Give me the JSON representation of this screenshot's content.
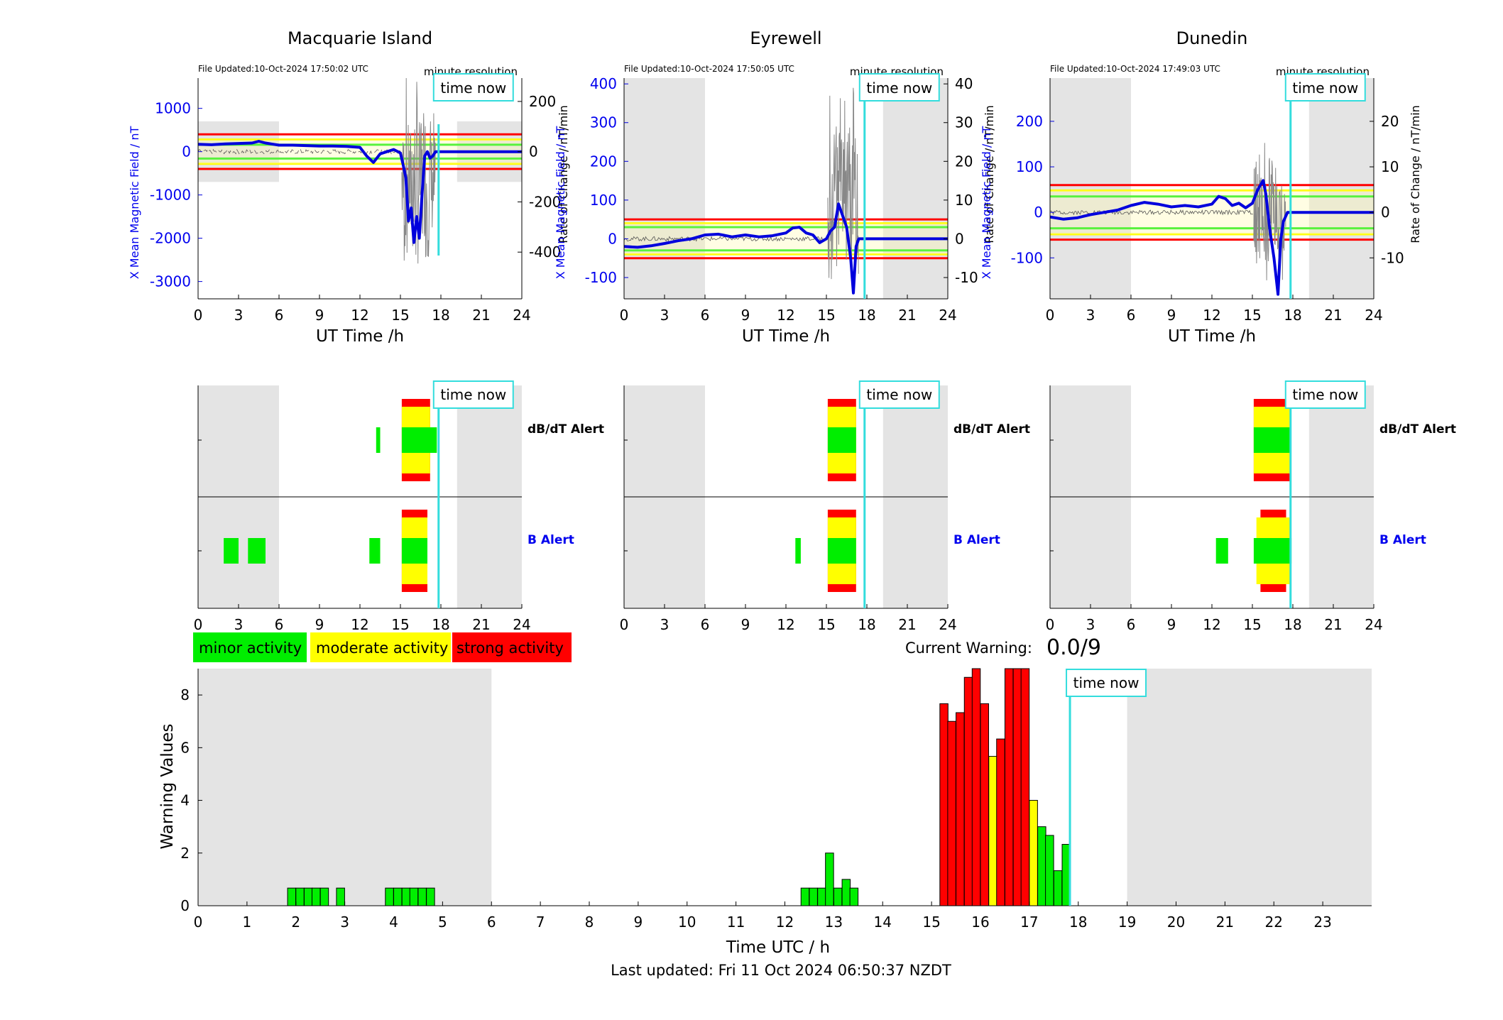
{
  "stations": [
    {
      "name": "Macquarie Island",
      "file_updated": "File Updated:10-Oct-2024 17:50:02 UTC",
      "resolution": "minute resolution",
      "time_now_label": "time now",
      "time_now_hour": 17.83,
      "night_bands": [
        [
          0,
          6
        ],
        [
          19.2,
          24
        ]
      ],
      "left_ylabel": "X Mean Magnetic Field / nT",
      "right_ylabel": "Rate of Change / nT/min",
      "left_ticks": [
        1000,
        0,
        -1000,
        -2000,
        -3000
      ],
      "left_range": [
        -3400,
        1700
      ],
      "right_ticks": [
        200,
        0,
        -200,
        -400
      ],
      "right_range": [
        -586,
        293
      ],
      "night_fill_range": [
        -700,
        700
      ],
      "thresholds": {
        "red": [
          400,
          -400
        ],
        "yellow": [
          280,
          -280
        ],
        "green": [
          160,
          -160
        ]
      },
      "mean_field": {
        "x": [
          0,
          1,
          2,
          3,
          4,
          4.5,
          5,
          6,
          7,
          8,
          9,
          10,
          11,
          12,
          12.5,
          13,
          13.5,
          14,
          14.5,
          15,
          15.2,
          15.4,
          15.6,
          15.8,
          16,
          16.2,
          16.4,
          16.6,
          16.8,
          17,
          17.2,
          17.4,
          17.6,
          17.8,
          18,
          20,
          24
        ],
        "y": [
          170,
          160,
          180,
          190,
          200,
          240,
          200,
          150,
          150,
          140,
          130,
          130,
          120,
          100,
          -100,
          -250,
          -50,
          0,
          50,
          -30,
          -300,
          -600,
          -1600,
          -1300,
          -2100,
          -1500,
          -2000,
          -1000,
          -100,
          0,
          -150,
          -100,
          0,
          0,
          0,
          0,
          0
        ]
      },
      "rate_of_change_span": [
        15.1,
        17.6,
        2000,
        -3400
      ],
      "alerts": {
        "dbdt": [
          {
            "from": 13.2,
            "to": 13.5,
            "level": "minor"
          },
          {
            "from": 15.1,
            "to": 17.2,
            "level": "strong"
          },
          {
            "from": 15.1,
            "to": 17.2,
            "level": "moderate"
          },
          {
            "from": 15.1,
            "to": 17.7,
            "level": "minor"
          }
        ],
        "b": [
          {
            "from": 1.9,
            "to": 3.0,
            "level": "minor"
          },
          {
            "from": 3.7,
            "to": 5.0,
            "level": "minor"
          },
          {
            "from": 12.7,
            "to": 13.5,
            "level": "minor"
          },
          {
            "from": 15.1,
            "to": 17.0,
            "level": "strong"
          },
          {
            "from": 15.1,
            "to": 17.0,
            "level": "moderate"
          },
          {
            "from": 15.1,
            "to": 17.0,
            "level": "minor"
          }
        ]
      }
    },
    {
      "name": "Eyrewell",
      "file_updated": "File Updated:10-Oct-2024 17:50:05 UTC",
      "resolution": "minute resolution",
      "time_now_label": "time now",
      "time_now_hour": 17.83,
      "night_bands": [
        [
          0,
          6
        ],
        [
          19.2,
          24
        ]
      ],
      "left_ylabel": "X Mean Magnetic Field / nT",
      "right_ylabel": "Rate of Change / nT/min",
      "left_ticks": [
        400,
        300,
        200,
        100,
        0,
        -100
      ],
      "left_range": [
        -155,
        415
      ],
      "right_ticks": [
        40,
        30,
        20,
        10,
        0,
        -10
      ],
      "right_range": [
        -15.5,
        41.5
      ],
      "night_fill_range": [
        -155,
        415
      ],
      "thresholds": {
        "red": [
          50,
          -50
        ],
        "yellow": [
          40,
          -40
        ],
        "green": [
          30,
          -30
        ]
      },
      "mean_field": {
        "x": [
          0,
          1,
          2,
          3,
          4,
          5,
          6,
          7,
          8,
          9,
          10,
          11,
          12,
          12.5,
          13,
          13.5,
          14,
          14.5,
          15,
          15.3,
          15.6,
          15.9,
          16.2,
          16.5,
          16.8,
          17,
          17.2,
          17.4,
          17.8,
          24
        ],
        "y": [
          -20,
          -22,
          -18,
          -12,
          -5,
          0,
          10,
          12,
          5,
          10,
          5,
          8,
          15,
          28,
          30,
          15,
          10,
          -10,
          0,
          20,
          30,
          90,
          60,
          30,
          -50,
          -140,
          -20,
          0,
          0,
          0
        ]
      },
      "rate_of_change_span": [
        15.1,
        17.4,
        400,
        -155
      ],
      "alerts": {
        "dbdt": [
          {
            "from": 15.1,
            "to": 17.2,
            "level": "strong"
          },
          {
            "from": 15.1,
            "to": 17.2,
            "level": "moderate"
          },
          {
            "from": 15.1,
            "to": 17.2,
            "level": "minor"
          }
        ],
        "b": [
          {
            "from": 12.7,
            "to": 13.1,
            "level": "minor"
          },
          {
            "from": 15.1,
            "to": 17.2,
            "level": "strong"
          },
          {
            "from": 15.1,
            "to": 17.2,
            "level": "moderate"
          },
          {
            "from": 15.1,
            "to": 17.2,
            "level": "minor"
          }
        ]
      }
    },
    {
      "name": "Dunedin",
      "file_updated": "File Updated:10-Oct-2024 17:49:03 UTC",
      "resolution": "minute resolution",
      "time_now_label": "time now",
      "time_now_hour": 17.83,
      "night_bands": [
        [
          0,
          6
        ],
        [
          19.2,
          24
        ]
      ],
      "left_ylabel": "X Mean Magnetic Field / nT",
      "right_ylabel": "Rate of Change / nT/min",
      "left_ticks": [
        200,
        100,
        0,
        -100
      ],
      "left_range": [
        -190,
        295
      ],
      "right_ticks": [
        20,
        10,
        0,
        -10
      ],
      "right_range": [
        -19,
        29.5
      ],
      "night_fill_range": [
        -190,
        295
      ],
      "thresholds": {
        "red": [
          60,
          -60
        ],
        "yellow": [
          48,
          -48
        ],
        "green": [
          35,
          -35
        ]
      },
      "mean_field": {
        "x": [
          0,
          1,
          2,
          3,
          4,
          5,
          6,
          7,
          8,
          9,
          10,
          11,
          12,
          12.5,
          13,
          13.5,
          14,
          14.5,
          15,
          15.4,
          15.8,
          16,
          16.3,
          16.6,
          16.9,
          17.1,
          17.3,
          17.6,
          17.8,
          24
        ],
        "y": [
          -10,
          -15,
          -12,
          -5,
          0,
          5,
          15,
          22,
          18,
          12,
          15,
          12,
          18,
          35,
          30,
          15,
          20,
          10,
          20,
          50,
          70,
          40,
          -40,
          -100,
          -180,
          -60,
          -20,
          0,
          0,
          0
        ]
      },
      "rate_of_change_span": [
        15.1,
        17.5,
        170,
        -190
      ],
      "alerts": {
        "dbdt": [
          {
            "from": 15.1,
            "to": 17.8,
            "level": "strong"
          },
          {
            "from": 15.1,
            "to": 17.8,
            "level": "moderate"
          },
          {
            "from": 15.1,
            "to": 17.8,
            "level": "minor"
          }
        ],
        "b": [
          {
            "from": 12.3,
            "to": 13.2,
            "level": "minor"
          },
          {
            "from": 15.6,
            "to": 17.5,
            "level": "strong"
          },
          {
            "from": 15.3,
            "to": 17.8,
            "level": "moderate"
          },
          {
            "from": 15.1,
            "to": 17.9,
            "level": "minor"
          }
        ]
      }
    }
  ],
  "axis_labels": {
    "station_x": "UT Time /h",
    "station_x_ticks": [
      "0",
      "3",
      "6",
      "9",
      "12",
      "15",
      "18",
      "21",
      "24"
    ],
    "dbdt_alert": "dB/dT Alert",
    "b_alert": "B Alert"
  },
  "legend": {
    "minor": "minor activity",
    "moderate": "moderate activity",
    "strong": "strong activity"
  },
  "current_warning": {
    "label": "Current Warning:",
    "value": "0.0/9"
  },
  "footer": {
    "last_updated": "Last updated: Fri 11 Oct 2024 06:50:37 NZDT"
  },
  "colors": {
    "minor": "#00ee00",
    "moderate": "#ffff00",
    "strong": "#ff0000",
    "night": "#e4e4e4",
    "time_now": "#33dddd",
    "field_line": "#0000dd"
  },
  "chart_data": {
    "type": "bar",
    "title": "",
    "xlabel": "Time UTC / h",
    "ylabel": "Warning Values",
    "xlim": [
      0,
      24
    ],
    "ylim": [
      0,
      9
    ],
    "x_ticks": [
      "0",
      "1",
      "2",
      "3",
      "4",
      "5",
      "6",
      "7",
      "8",
      "9",
      "10",
      "11",
      "12",
      "13",
      "14",
      "15",
      "16",
      "17",
      "18",
      "19",
      "20",
      "21",
      "22",
      "23"
    ],
    "y_ticks": [
      "0",
      "2",
      "4",
      "6",
      "8"
    ],
    "time_now_label": "time now",
    "time_now_hour": 17.83,
    "night_bands": [
      [
        0,
        6
      ],
      [
        19,
        24
      ]
    ],
    "bin_width_h": 0.1667,
    "bars": [
      {
        "t": 1.83,
        "v": 0.67,
        "level": "minor"
      },
      {
        "t": 2.0,
        "v": 0.67,
        "level": "minor"
      },
      {
        "t": 2.17,
        "v": 0.67,
        "level": "minor"
      },
      {
        "t": 2.33,
        "v": 0.67,
        "level": "minor"
      },
      {
        "t": 2.5,
        "v": 0.67,
        "level": "minor"
      },
      {
        "t": 2.83,
        "v": 0.67,
        "level": "minor"
      },
      {
        "t": 3.83,
        "v": 0.67,
        "level": "minor"
      },
      {
        "t": 4.0,
        "v": 0.67,
        "level": "minor"
      },
      {
        "t": 4.17,
        "v": 0.67,
        "level": "minor"
      },
      {
        "t": 4.33,
        "v": 0.67,
        "level": "minor"
      },
      {
        "t": 4.5,
        "v": 0.67,
        "level": "minor"
      },
      {
        "t": 4.67,
        "v": 0.67,
        "level": "minor"
      },
      {
        "t": 12.33,
        "v": 0.67,
        "level": "minor"
      },
      {
        "t": 12.5,
        "v": 0.67,
        "level": "minor"
      },
      {
        "t": 12.67,
        "v": 0.67,
        "level": "minor"
      },
      {
        "t": 12.83,
        "v": 2.0,
        "level": "minor"
      },
      {
        "t": 13.0,
        "v": 0.67,
        "level": "minor"
      },
      {
        "t": 13.17,
        "v": 1.0,
        "level": "minor"
      },
      {
        "t": 13.33,
        "v": 0.67,
        "level": "minor"
      },
      {
        "t": 15.17,
        "v": 7.67,
        "level": "strong"
      },
      {
        "t": 15.33,
        "v": 7.0,
        "level": "strong"
      },
      {
        "t": 15.5,
        "v": 7.33,
        "level": "strong"
      },
      {
        "t": 15.67,
        "v": 8.67,
        "level": "strong"
      },
      {
        "t": 15.83,
        "v": 9.0,
        "level": "strong"
      },
      {
        "t": 16.0,
        "v": 7.67,
        "level": "strong"
      },
      {
        "t": 16.17,
        "v": 5.67,
        "level": "moderate"
      },
      {
        "t": 16.33,
        "v": 6.33,
        "level": "strong"
      },
      {
        "t": 16.5,
        "v": 9.0,
        "level": "strong"
      },
      {
        "t": 16.67,
        "v": 9.0,
        "level": "strong"
      },
      {
        "t": 16.83,
        "v": 9.0,
        "level": "strong"
      },
      {
        "t": 17.0,
        "v": 4.0,
        "level": "moderate"
      },
      {
        "t": 17.17,
        "v": 3.0,
        "level": "minor"
      },
      {
        "t": 17.33,
        "v": 2.67,
        "level": "minor"
      },
      {
        "t": 17.5,
        "v": 1.33,
        "level": "minor"
      },
      {
        "t": 17.67,
        "v": 2.33,
        "level": "minor"
      }
    ]
  }
}
